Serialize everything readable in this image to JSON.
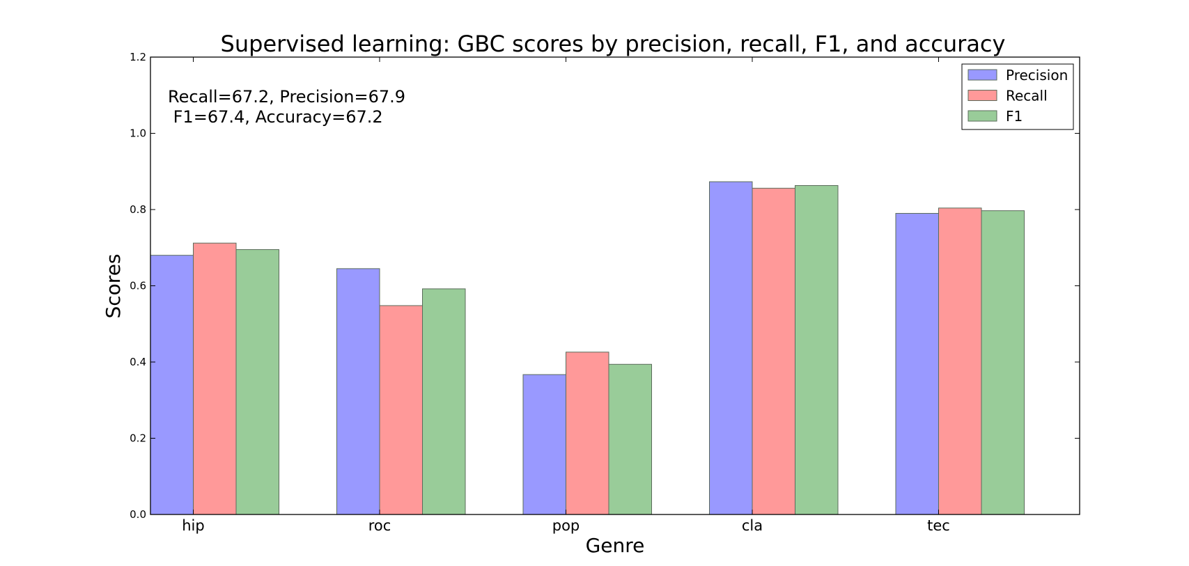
{
  "chart_data": {
    "type": "bar",
    "title": "Supervised learning: GBC scores by precision, recall, F1, and accuracy",
    "xlabel": "Genre",
    "ylabel": "Scores",
    "categories": [
      "hip",
      "roc",
      "pop",
      "cla",
      "tec"
    ],
    "series": [
      {
        "name": "Precision",
        "color": "#9999ff",
        "values": [
          0.68,
          0.645,
          0.367,
          0.873,
          0.79
        ]
      },
      {
        "name": "Recall",
        "color": "#ff9999",
        "values": [
          0.712,
          0.548,
          0.426,
          0.856,
          0.804
        ]
      },
      {
        "name": "F1",
        "color": "#99cc99",
        "values": [
          0.695,
          0.592,
          0.394,
          0.863,
          0.797
        ]
      }
    ],
    "ylim": [
      0,
      1.2
    ],
    "yticks": [
      "0.0",
      "0.2",
      "0.4",
      "0.6",
      "0.8",
      "1.0",
      "1.2"
    ],
    "annotation": [
      "Recall=67.2, Precision=67.9",
      " F1=67.4, Accuracy=67.2"
    ],
    "legend_position": "top-right",
    "grid": false
  }
}
